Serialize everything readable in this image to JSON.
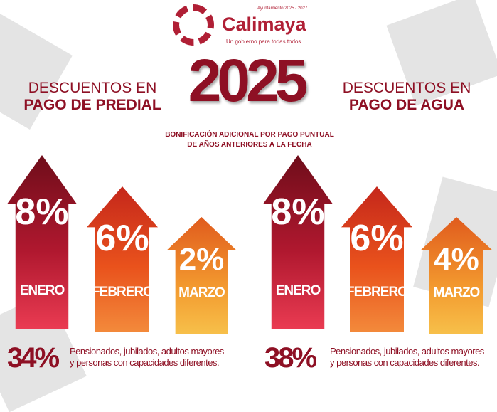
{
  "header": {
    "brand": "Calimaya",
    "period": "Ayuntamiento 2025 - 2027",
    "slogan": "Un gobierno para todas todos",
    "year": "2025"
  },
  "left": {
    "title1": "DESCUENTOS EN",
    "title2": "PAGO DE PREDIAL",
    "arrows": [
      {
        "pct": "8%",
        "month": "ENERO"
      },
      {
        "pct": "6%",
        "month": "FEBRERO"
      },
      {
        "pct": "2%",
        "month": "MARZO"
      }
    ],
    "special": "34%",
    "note1": "Pensionados, jubilados, adultos mayores",
    "note2": "y personas con capacidades diferentes."
  },
  "right": {
    "title1": "DESCUENTOS EN",
    "title2": "PAGO DE AGUA",
    "arrows": [
      {
        "pct": "8%",
        "month": "ENERO"
      },
      {
        "pct": "6%",
        "month": "FEBRERO"
      },
      {
        "pct": "4%",
        "month": "MARZO"
      }
    ],
    "special": "38%",
    "note1": "Pensionados, jubilados, adultos mayores",
    "note2": "y personas con capacidades diferentes."
  },
  "subtitle1": "BONIFICACIÓN ADICIONAL POR PAGO PUNTUAL",
  "subtitle2": "DE AÑOS ANTERIORES A LA FECHA",
  "colors": {
    "brand": "#8e1024",
    "logo": "#b01f35"
  }
}
